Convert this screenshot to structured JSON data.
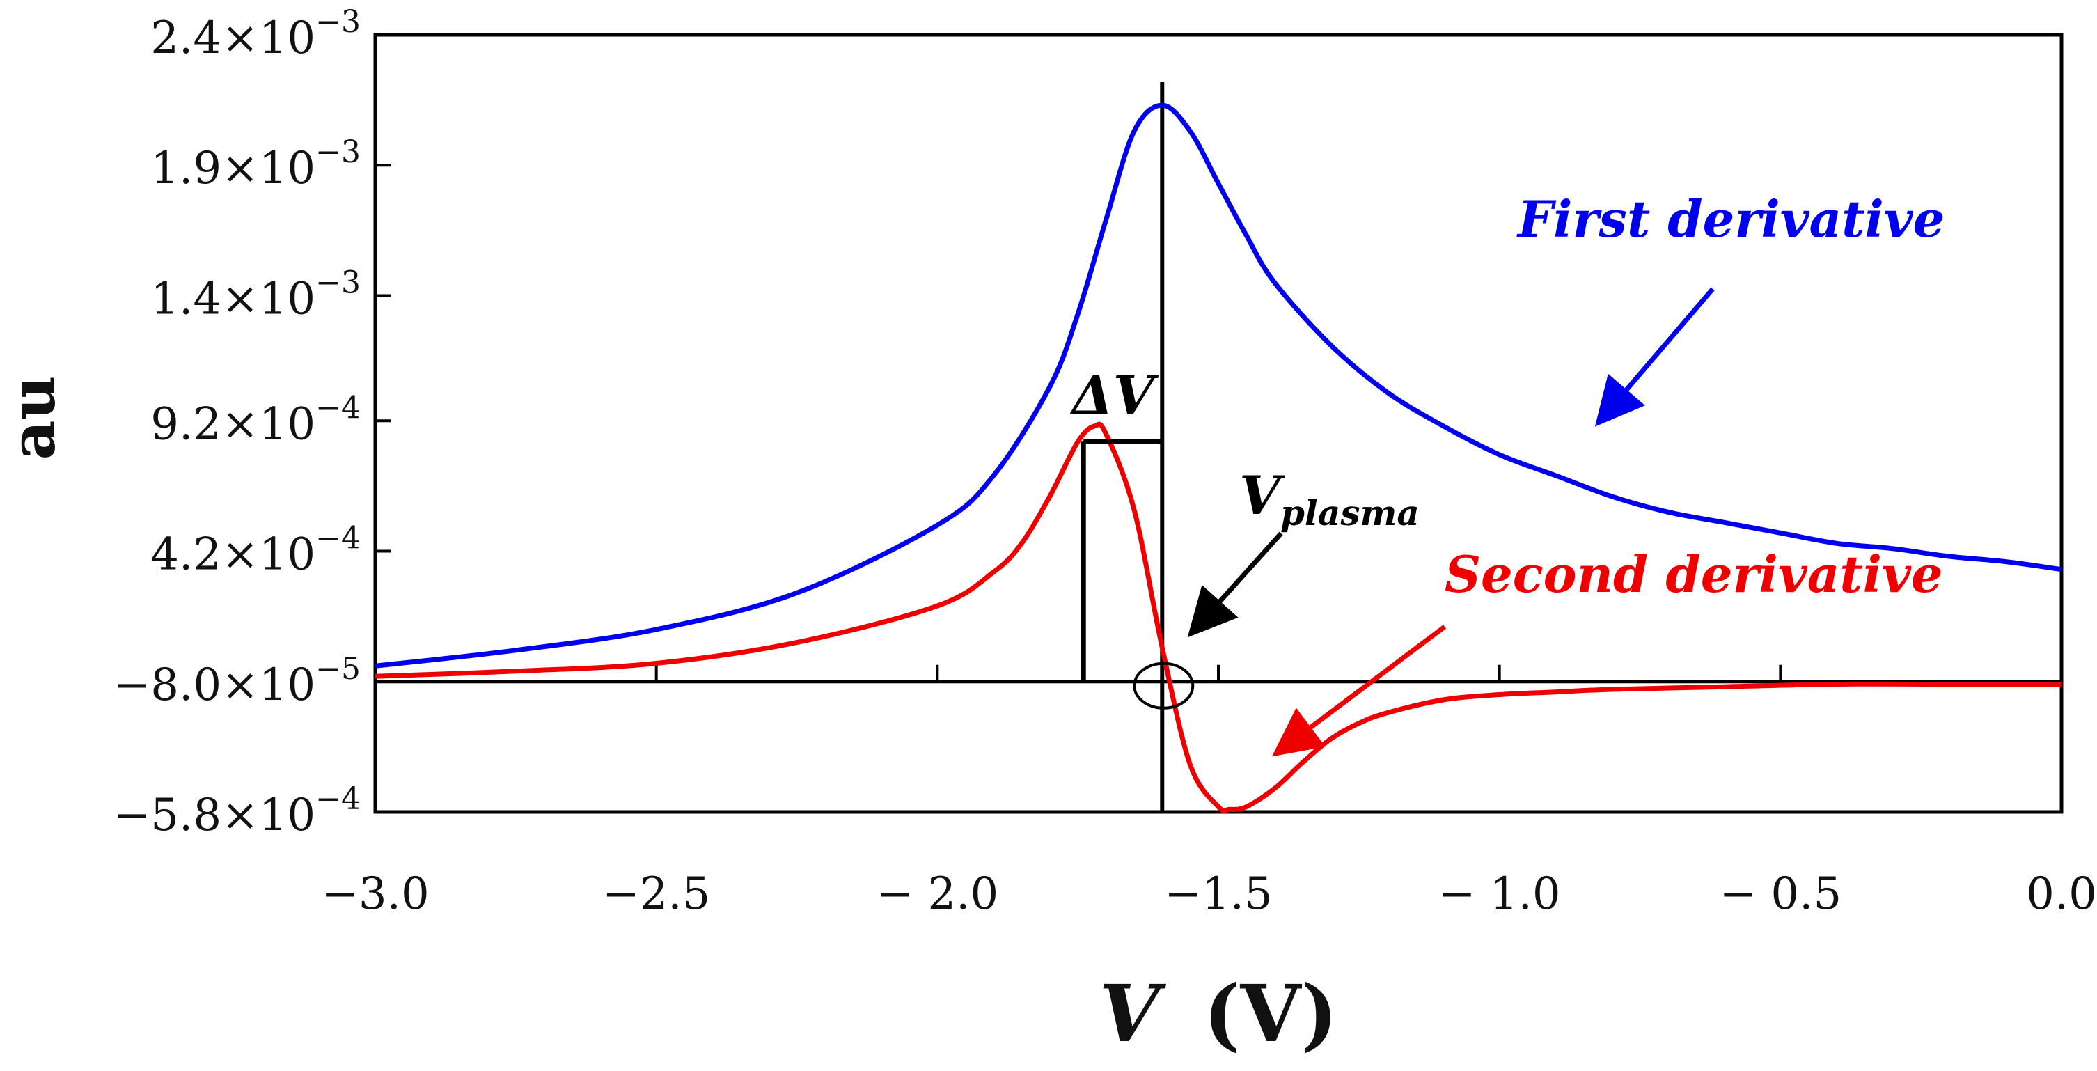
{
  "chart_data": {
    "type": "line",
    "title": "",
    "xlabel": {
      "var": "V",
      "unit": "(V)"
    },
    "ylabel": "au",
    "xlim": [
      -3.0,
      0.0
    ],
    "ylim": [
      -0.00058,
      0.0024
    ],
    "x_ticks": [
      {
        "value": -3.0,
        "label": "−3.0"
      },
      {
        "value": -2.5,
        "label": "−2.5"
      },
      {
        "value": -2.0,
        "label": "− 2.0"
      },
      {
        "value": -1.5,
        "label": "−1.5"
      },
      {
        "value": -1.0,
        "label": "− 1.0"
      },
      {
        "value": -0.5,
        "label": "− 0.5"
      },
      {
        "value": 0.0,
        "label": "0.0"
      }
    ],
    "y_ticks": [
      {
        "value": 0.0024,
        "mant": "2.4×10",
        "exp": "−3"
      },
      {
        "value": 0.0019,
        "mant": "1.9×10",
        "exp": "−3"
      },
      {
        "value": 0.0014,
        "mant": "1.4×10",
        "exp": "−3"
      },
      {
        "value": 0.00092,
        "mant": "9.2×10",
        "exp": "−4"
      },
      {
        "value": 0.00042,
        "mant": "4.2×10",
        "exp": "−4"
      },
      {
        "value": -8e-05,
        "mant": "−8.0×10",
        "exp": "−5"
      },
      {
        "value": -0.00058,
        "mant": "−5.8×10",
        "exp": "−4"
      }
    ],
    "series": [
      {
        "name": "First derivative",
        "color": "#0000ee",
        "x": [
          -3.0,
          -2.75,
          -2.5,
          -2.25,
          -2.0,
          -1.9,
          -1.8,
          -1.75,
          -1.7,
          -1.65,
          -1.6,
          -1.55,
          -1.5,
          -1.45,
          -1.4,
          -1.3,
          -1.2,
          -1.1,
          -1.0,
          -0.9,
          -0.8,
          -0.7,
          -0.6,
          -0.5,
          -0.4,
          -0.3,
          -0.2,
          -0.1,
          0.0
        ],
        "y": [
          -2e-05,
          4e-05,
          0.00012,
          0.00026,
          0.00052,
          0.00071,
          0.00105,
          0.00133,
          0.00169,
          0.00203,
          0.00213,
          0.00203,
          0.00183,
          0.00163,
          0.00145,
          0.00121,
          0.00103,
          0.0009,
          0.00079,
          0.00071,
          0.00063,
          0.00057,
          0.00053,
          0.00049,
          0.00045,
          0.00043,
          0.0004,
          0.00038,
          0.00035
        ]
      },
      {
        "name": "Second derivative",
        "color": "#ee0000",
        "x": [
          -3.0,
          -2.75,
          -2.5,
          -2.25,
          -2.0,
          -1.9,
          -1.85,
          -1.8,
          -1.75,
          -1.72,
          -1.7,
          -1.65,
          -1.6,
          -1.55,
          -1.5,
          -1.48,
          -1.45,
          -1.4,
          -1.35,
          -1.3,
          -1.25,
          -1.2,
          -1.1,
          -1.0,
          -0.9,
          -0.8,
          -0.6,
          -0.4,
          -0.2,
          0.0
        ],
        "y": [
          -6e-05,
          -4e-05,
          -1e-05,
          7e-05,
          0.00021,
          0.00034,
          0.00045,
          0.00063,
          0.00084,
          0.0009,
          0.00087,
          0.00058,
          5e-05,
          -0.0004,
          -0.00056,
          -0.00057,
          -0.00056,
          -0.00049,
          -0.00039,
          -0.0003,
          -0.00024,
          -0.0002,
          -0.00015,
          -0.00013,
          -0.00012,
          -0.00011,
          -0.0001,
          -9e-05,
          -9e-05,
          -9e-05
        ]
      }
    ],
    "reference_lines": {
      "horizontal_y": -8e-05,
      "vertical_x": -1.6
    },
    "annotations": {
      "delta_v": {
        "label": "ΔV",
        "x_start": -1.74,
        "x_end": -1.6,
        "y": 0.00084
      },
      "v_plasma": {
        "main": "V",
        "sub": "plasma",
        "x": -1.6,
        "y": -8e-05
      },
      "first_label": "First derivative",
      "second_label": "Second derivative"
    }
  }
}
